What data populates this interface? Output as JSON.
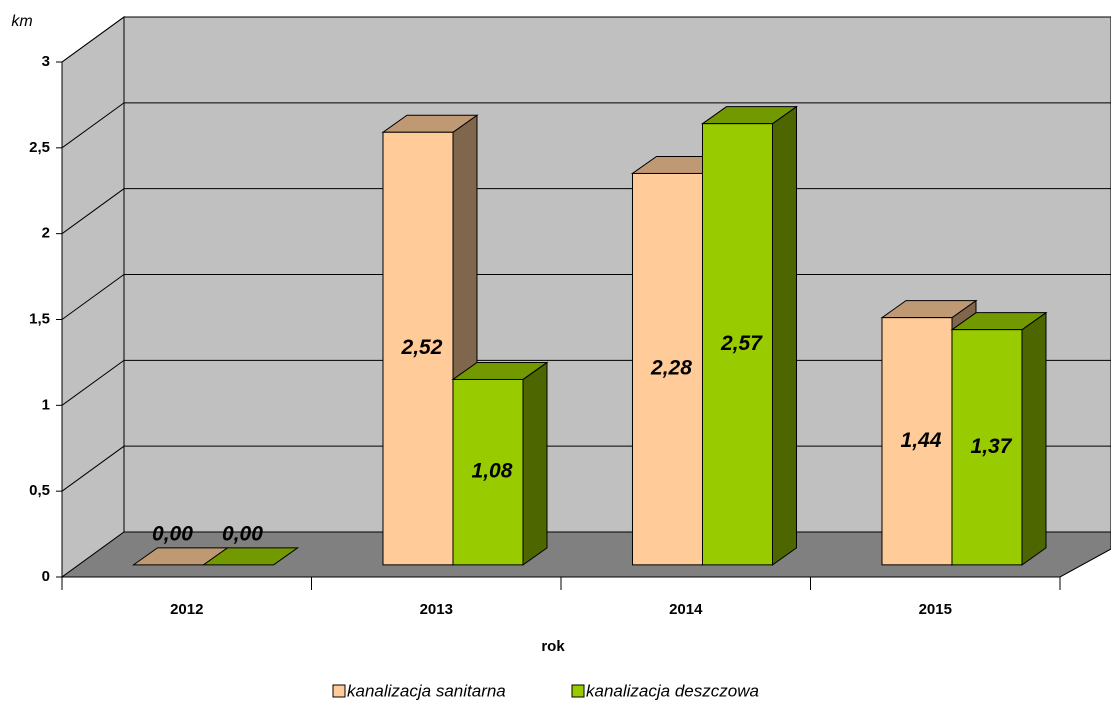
{
  "chart_data": {
    "type": "bar3d",
    "y_label": "km",
    "x_label": "rok",
    "categories": [
      "2012",
      "2013",
      "2014",
      "2015"
    ],
    "series": [
      {
        "name": "kanalizacja sanitarna",
        "color": "#FFCC99",
        "values": [
          0,
          2.52,
          2.28,
          1.44
        ],
        "value_labels": [
          "0,00",
          "2,52",
          "2,28",
          "1,44"
        ]
      },
      {
        "name": "kanalizacja deszczowa",
        "color": "#99CC00",
        "values": [
          0,
          1.08,
          2.57,
          1.37
        ],
        "value_labels": [
          "0,00",
          "1,08",
          "2,57",
          "1,37"
        ]
      }
    ],
    "ylim": [
      0,
      3
    ],
    "yticks": [
      0,
      {
        "value": 0.5,
        "label": "0,5"
      },
      1,
      {
        "value": 1.5,
        "label": "1,5"
      },
      2,
      {
        "value": 2.5,
        "label": "2,5"
      },
      3
    ],
    "grid": true,
    "legend": "bottom"
  }
}
